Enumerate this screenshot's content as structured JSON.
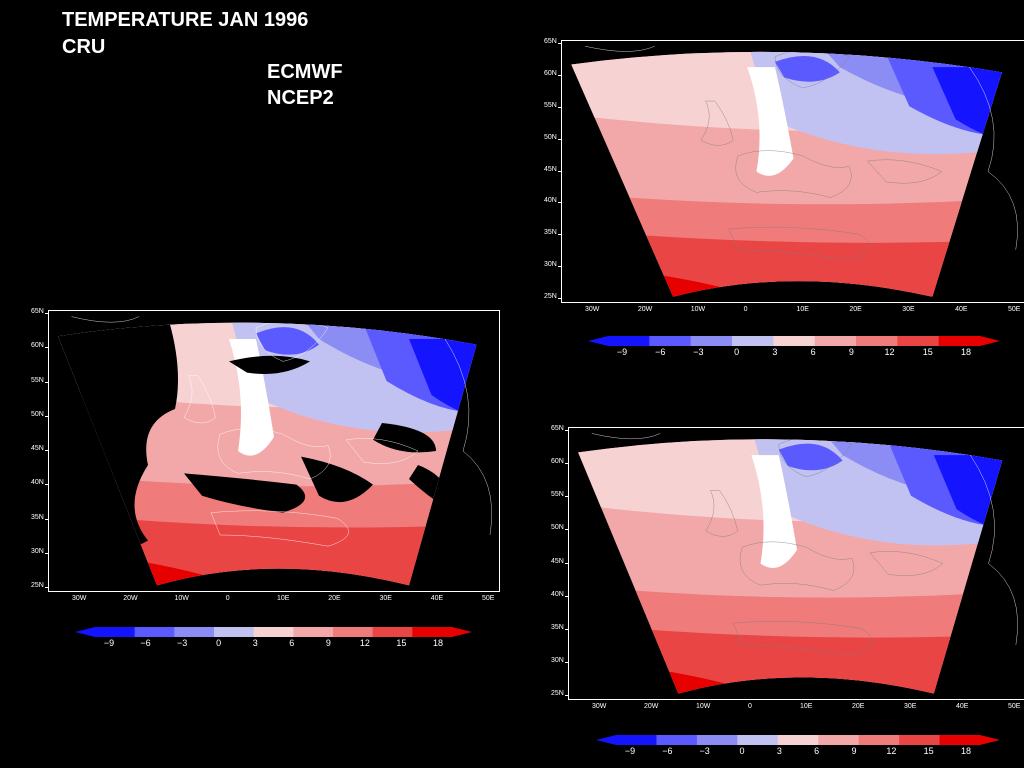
{
  "header": {
    "title_line1": "TEMPERATURE JAN 1996",
    "title_line2": "CRU",
    "ecmwf": "ECMWF",
    "ncep2": "NCEP2"
  },
  "lat_ticks": [
    "65N",
    "60N",
    "55N",
    "50N",
    "45N",
    "40N",
    "35N",
    "30N",
    "25N"
  ],
  "lon_ticks": [
    "30W",
    "20W",
    "10W",
    "0",
    "10E",
    "20E",
    "30E",
    "40E",
    "50E"
  ],
  "colorbar": {
    "labels": [
      "−9",
      "−6",
      "−3",
      "0",
      "3",
      "6",
      "9",
      "12",
      "15",
      "18"
    ],
    "colors": [
      "#1414ff",
      "#5a5aff",
      "#8c8cf5",
      "#c2c2f2",
      "#ffffff",
      "#f7d2d2",
      "#f2a8a8",
      "#ef7b7b",
      "#e94545",
      "#e60000"
    ]
  },
  "maps": [
    {
      "id": "cru",
      "label": "CRU"
    },
    {
      "id": "ecmwf",
      "label": "ECMWF"
    },
    {
      "id": "ncep2",
      "label": "NCEP2"
    }
  ]
}
